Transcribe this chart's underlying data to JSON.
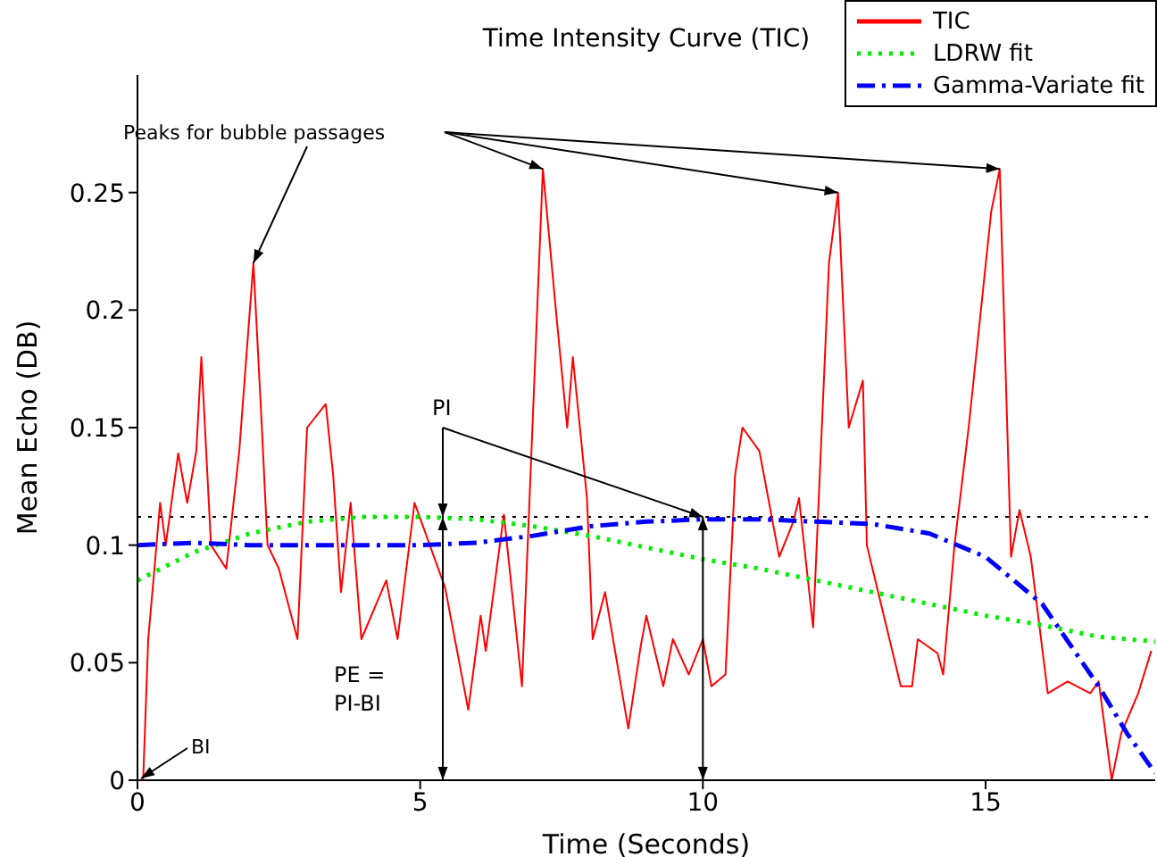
{
  "chart_data": {
    "type": "line",
    "title": "Time Intensity Curve (TIC)",
    "xlabel": "Time (Seconds)",
    "ylabel": "Mean Echo (DB)",
    "xlim": [
      0,
      18
    ],
    "ylim": [
      0,
      0.3
    ],
    "xticks": [
      0,
      5,
      10,
      15
    ],
    "yticks": [
      0,
      0.05,
      0.1,
      0.15,
      0.2,
      0.25
    ],
    "legend": "top right",
    "marker": "none",
    "series": [
      {
        "name": "TIC",
        "color": "#ff0000",
        "line_style": "solid",
        "x": [
          0,
          0.1,
          0.19,
          0.3,
          0.4,
          0.5,
          0.72,
          0.88,
          1.04,
          1.13,
          1.3,
          1.57,
          1.8,
          2.05,
          2.2,
          2.3,
          2.5,
          2.83,
          3.0,
          3.33,
          3.46,
          3.6,
          3.77,
          3.96,
          4.4,
          4.6,
          4.9,
          5.44,
          5.85,
          6.07,
          6.16,
          6.48,
          6.8,
          7.17,
          7.4,
          7.6,
          7.7,
          7.95,
          8.05,
          8.27,
          8.68,
          8.9,
          9.0,
          9.3,
          9.47,
          9.75,
          10.0,
          10.15,
          10.4,
          10.57,
          10.7,
          11.0,
          11.35,
          11.6,
          11.7,
          11.95,
          12.23,
          12.39,
          12.58,
          12.83,
          12.9,
          13.5,
          13.7,
          13.8,
          14.15,
          14.25,
          14.45,
          14.7,
          15.1,
          15.25,
          15.45,
          15.6,
          15.8,
          16.1,
          16.45,
          16.85,
          17.0,
          17.23,
          17.4,
          17.7,
          17.93
        ],
        "values": [
          0,
          0,
          0.06,
          0.09,
          0.118,
          0.1,
          0.139,
          0.118,
          0.14,
          0.18,
          0.1,
          0.09,
          0.14,
          0.22,
          0.15,
          0.1,
          0.09,
          0.06,
          0.15,
          0.16,
          0.13,
          0.08,
          0.118,
          0.06,
          0.085,
          0.06,
          0.118,
          0.082,
          0.03,
          0.07,
          0.055,
          0.113,
          0.04,
          0.26,
          0.2,
          0.15,
          0.18,
          0.12,
          0.06,
          0.08,
          0.022,
          0.057,
          0.07,
          0.04,
          0.06,
          0.045,
          0.06,
          0.04,
          0.045,
          0.13,
          0.15,
          0.14,
          0.095,
          0.11,
          0.12,
          0.065,
          0.22,
          0.25,
          0.15,
          0.17,
          0.1,
          0.04,
          0.04,
          0.06,
          0.054,
          0.045,
          0.1,
          0.15,
          0.242,
          0.26,
          0.095,
          0.115,
          0.095,
          0.037,
          0.042,
          0.037,
          0.042,
          0,
          0.02,
          0.037,
          0.055
        ]
      },
      {
        "name": "LDRW fit",
        "color": "#00ee00",
        "line_style": "dotted",
        "x": [
          0,
          1,
          2,
          3,
          4,
          5,
          6,
          7,
          8,
          9,
          10,
          11,
          12,
          13,
          14,
          15,
          16,
          17,
          18
        ],
        "values": [
          0.085,
          0.097,
          0.105,
          0.11,
          0.112,
          0.112,
          0.111,
          0.108,
          0.104,
          0.099,
          0.094,
          0.09,
          0.085,
          0.08,
          0.075,
          0.07,
          0.066,
          0.061,
          0.059
        ]
      },
      {
        "name": "Gamma-Variate fit",
        "color": "#0000ff",
        "line_style": "dashdot",
        "x": [
          0,
          1,
          2,
          3,
          4,
          5,
          6,
          7,
          8,
          9,
          10,
          11,
          12,
          13,
          14,
          15,
          16,
          17,
          17.5,
          18
        ],
        "values": [
          0.1,
          0.101,
          0.1,
          0.1,
          0.1,
          0.1,
          0.101,
          0.104,
          0.108,
          0.11,
          0.111,
          0.111,
          0.11,
          0.109,
          0.105,
          0.095,
          0.075,
          0.04,
          0.02,
          0.003
        ]
      }
    ],
    "ref_lines": [
      {
        "axis": "y",
        "value": 0.112,
        "color": "#000000",
        "line_style": "dotted"
      }
    ],
    "annotations": [
      {
        "text": "Peaks for bubble passages",
        "x": 2.05,
        "y": 0.22
      },
      {
        "text": "PI",
        "x": 5.4,
        "y": 0.112
      },
      "PE =\nPI-BI",
      {
        "text": "BI",
        "x": 0,
        "y": 0
      }
    ]
  }
}
